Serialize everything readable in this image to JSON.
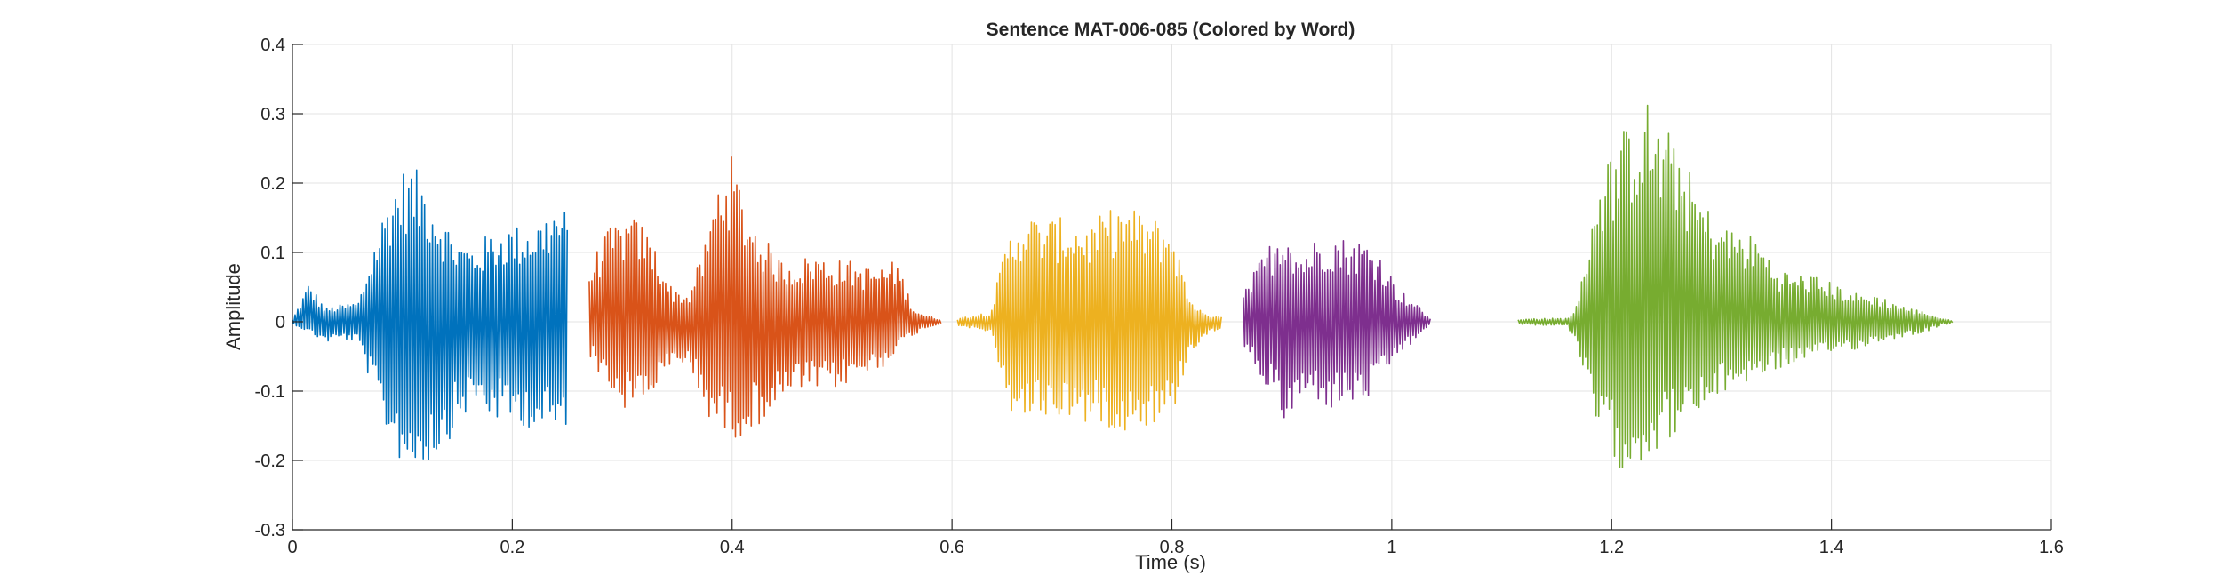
{
  "chart_data": {
    "type": "line",
    "title": "Sentence MAT-006-085 (Colored by Word)",
    "xlabel": "Time (s)",
    "ylabel": "Amplitude",
    "xlim": [
      0,
      1.6
    ],
    "ylim": [
      -0.3,
      0.4
    ],
    "xticks": [
      0,
      0.2,
      0.4,
      0.6,
      0.8,
      1.0,
      1.2,
      1.4,
      1.6
    ],
    "xtick_labels": [
      "0",
      "0.2",
      "0.4",
      "0.6",
      "0.8",
      "1",
      "1.2",
      "1.4",
      "1.6"
    ],
    "yticks": [
      -0.3,
      -0.2,
      -0.1,
      0,
      0.1,
      0.2,
      0.3,
      0.4
    ],
    "ytick_labels": [
      "-0.3",
      "-0.2",
      "-0.1",
      "0",
      "0.1",
      "0.2",
      "0.3",
      "0.4"
    ],
    "grid": true,
    "series": [
      {
        "color": "#0072BD",
        "segments": [
          {
            "x": [
              0.0,
              0.015,
              0.03,
              0.045,
              0.06,
              0.075,
              0.09,
              0.105,
              0.12,
              0.135,
              0.15,
              0.165,
              0.18,
              0.195,
              0.21,
              0.225,
              0.24,
              0.25
            ],
            "max": [
              0.003,
              0.058,
              0.02,
              0.025,
              0.03,
              0.12,
              0.2,
              0.23,
              0.21,
              0.16,
              0.12,
              0.11,
              0.13,
              0.14,
              0.14,
              0.15,
              0.17,
              0.16
            ],
            "min": [
              -0.003,
              -0.015,
              -0.03,
              -0.025,
              -0.03,
              -0.11,
              -0.18,
              -0.22,
              -0.21,
              -0.19,
              -0.15,
              -0.12,
              -0.14,
              -0.15,
              -0.15,
              -0.16,
              -0.17,
              -0.15
            ]
          }
        ]
      },
      {
        "color": "#D95319",
        "segments": [
          {
            "x": [
              0.27,
              0.285,
              0.3,
              0.315,
              0.33,
              0.345,
              0.36,
              0.375,
              0.39,
              0.4,
              0.415,
              0.43,
              0.445,
              0.46,
              0.475,
              0.49,
              0.505,
              0.52,
              0.535,
              0.55,
              0.565,
              0.575,
              0.59
            ],
            "max": [
              0.08,
              0.13,
              0.15,
              0.15,
              0.11,
              0.05,
              0.04,
              0.11,
              0.23,
              0.24,
              0.16,
              0.12,
              0.09,
              0.09,
              0.1,
              0.09,
              0.09,
              0.08,
              0.08,
              0.09,
              0.02,
              0.01,
              0.003
            ],
            "min": [
              -0.05,
              -0.09,
              -0.13,
              -0.12,
              -0.1,
              -0.07,
              -0.06,
              -0.13,
              -0.16,
              -0.17,
              -0.16,
              -0.14,
              -0.12,
              -0.1,
              -0.1,
              -0.1,
              -0.09,
              -0.08,
              -0.07,
              -0.04,
              -0.02,
              -0.01,
              -0.003
            ]
          }
        ]
      },
      {
        "color": "#EDB120",
        "segments": [
          {
            "x": [
              0.605,
              0.62,
              0.635,
              0.65,
              0.665,
              0.68,
              0.695,
              0.71,
              0.725,
              0.74,
              0.755,
              0.77,
              0.785,
              0.8,
              0.815,
              0.83,
              0.845
            ],
            "max": [
              0.005,
              0.01,
              0.015,
              0.12,
              0.16,
              0.15,
              0.15,
              0.15,
              0.14,
              0.16,
              0.17,
              0.16,
              0.15,
              0.14,
              0.04,
              0.01,
              0.01
            ],
            "min": [
              -0.005,
              -0.01,
              -0.015,
              -0.13,
              -0.14,
              -0.14,
              -0.14,
              -0.14,
              -0.15,
              -0.15,
              -0.16,
              -0.15,
              -0.15,
              -0.14,
              -0.05,
              -0.02,
              -0.01
            ]
          }
        ]
      },
      {
        "color": "#7E2F8E",
        "segments": [
          {
            "x": [
              0.865,
              0.88,
              0.895,
              0.905,
              0.915,
              0.93,
              0.945,
              0.96,
              0.975,
              0.99,
              1.005,
              1.02,
              1.035
            ],
            "max": [
              0.04,
              0.09,
              0.13,
              0.15,
              0.1,
              0.12,
              0.13,
              0.12,
              0.12,
              0.1,
              0.05,
              0.03,
              0.005
            ],
            "min": [
              -0.04,
              -0.08,
              -0.12,
              -0.16,
              -0.12,
              -0.11,
              -0.13,
              -0.12,
              -0.12,
              -0.09,
              -0.05,
              -0.03,
              -0.005
            ]
          }
        ]
      },
      {
        "color": "#77AC30",
        "segments": [
          {
            "x": [
              1.115,
              1.13,
              1.145,
              1.16,
              1.17,
              1.185,
              1.2,
              1.215,
              1.23,
              1.245,
              1.26,
              1.275,
              1.29,
              1.305,
              1.32,
              1.335,
              1.35,
              1.365,
              1.38,
              1.395,
              1.41,
              1.425,
              1.44,
              1.455,
              1.47,
              1.485,
              1.5,
              1.51
            ],
            "max": [
              0.003,
              0.005,
              0.005,
              0.005,
              0.03,
              0.2,
              0.25,
              0.29,
              0.33,
              0.28,
              0.27,
              0.2,
              0.16,
              0.14,
              0.13,
              0.12,
              0.08,
              0.07,
              0.07,
              0.06,
              0.05,
              0.04,
              0.04,
              0.03,
              0.02,
              0.015,
              0.005,
              0.002
            ],
            "min": [
              -0.003,
              -0.005,
              -0.005,
              -0.005,
              -0.05,
              -0.15,
              -0.2,
              -0.22,
              -0.2,
              -0.18,
              -0.16,
              -0.15,
              -0.12,
              -0.1,
              -0.09,
              -0.08,
              -0.07,
              -0.06,
              -0.06,
              -0.05,
              -0.04,
              -0.04,
              -0.03,
              -0.025,
              -0.02,
              -0.015,
              -0.005,
              -0.002
            ]
          }
        ]
      }
    ]
  }
}
